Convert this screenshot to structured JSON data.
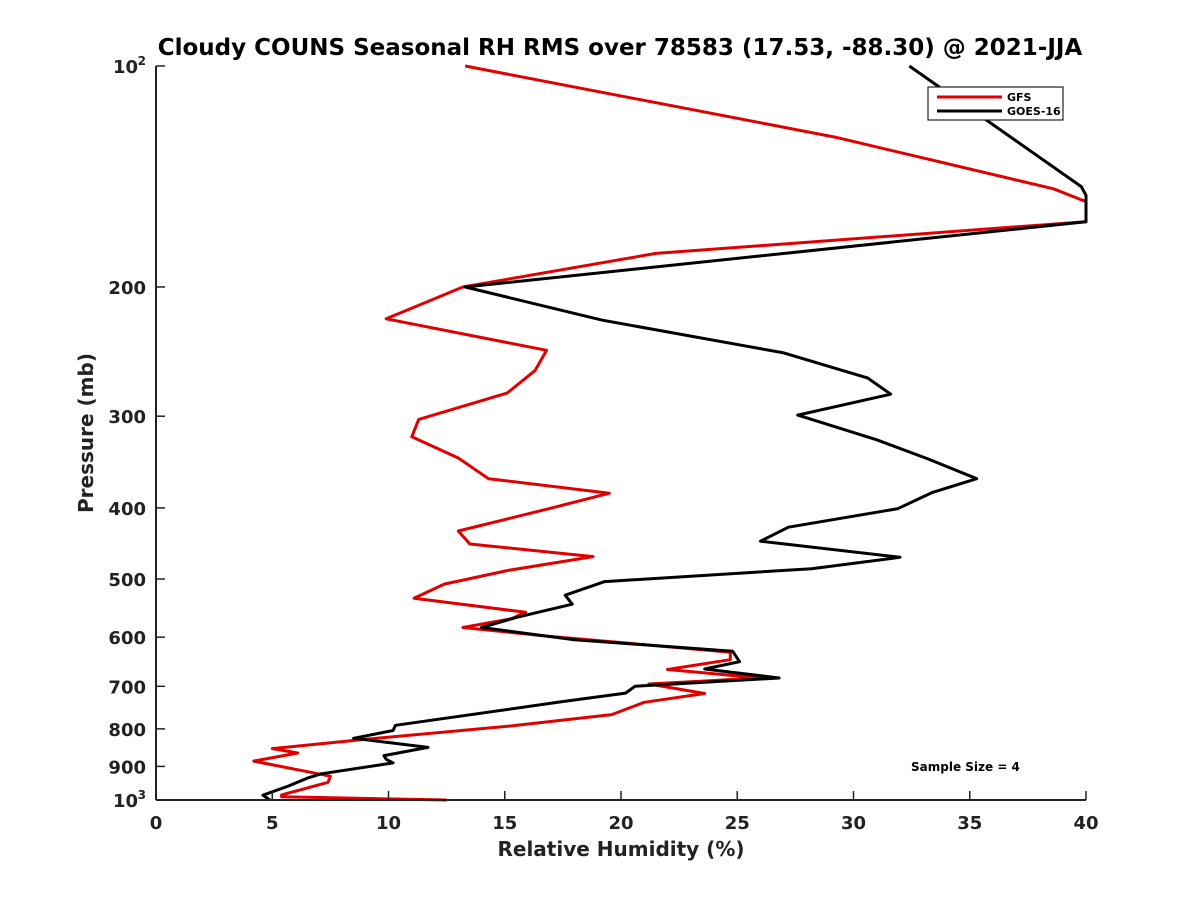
{
  "chart_data": {
    "type": "line",
    "title": "Cloudy COUNS Seasonal RH RMS over 78583 (17.53, -88.30) @ 2021-JJA",
    "xlabel": "Relative Humidity (%)",
    "ylabel": "Pressure (mb)",
    "xlim": [
      0,
      40
    ],
    "ylim": [
      100,
      1000
    ],
    "yscale": "log",
    "y_reversed": true,
    "grid": false,
    "legend_position": "top-right",
    "x_ticks": [
      0,
      5,
      10,
      15,
      20,
      25,
      30,
      35,
      40
    ],
    "x_tick_labels": [
      "0",
      "5",
      "10",
      "15",
      "20",
      "25",
      "30",
      "35",
      "40"
    ],
    "y_ticks": [
      100,
      200,
      300,
      400,
      500,
      600,
      700,
      800,
      900,
      1000
    ],
    "y_tick_labels": [
      {
        "base": "10",
        "exp": "2"
      },
      {
        "base": "200",
        "exp": ""
      },
      {
        "base": "300",
        "exp": ""
      },
      {
        "base": "400",
        "exp": ""
      },
      {
        "base": "500",
        "exp": ""
      },
      {
        "base": "600",
        "exp": ""
      },
      {
        "base": "700",
        "exp": ""
      },
      {
        "base": "800",
        "exp": ""
      },
      {
        "base": "900",
        "exp": ""
      },
      {
        "base": "10",
        "exp": "3"
      }
    ],
    "annotation": "Sample Size = 4",
    "series": [
      {
        "name": "GFS",
        "color": "#e00000",
        "points": [
          [
            13.3,
            100
          ],
          [
            29.2,
            125
          ],
          [
            38.6,
            147
          ],
          [
            40.0,
            153
          ],
          [
            40.0,
            163
          ],
          [
            21.5,
            180
          ],
          [
            13.2,
            200
          ],
          [
            9.9,
            221
          ],
          [
            16.8,
            244
          ],
          [
            16.3,
            260
          ],
          [
            15.1,
            279
          ],
          [
            11.3,
            303
          ],
          [
            11.0,
            320
          ],
          [
            13.0,
            342
          ],
          [
            14.3,
            365
          ],
          [
            19.5,
            382
          ],
          [
            16.9,
            401
          ],
          [
            13.0,
            430
          ],
          [
            13.5,
            448
          ],
          [
            18.8,
            466
          ],
          [
            15.1,
            487
          ],
          [
            12.4,
            508
          ],
          [
            11.1,
            531
          ],
          [
            15.9,
            555
          ],
          [
            15.3,
            566
          ],
          [
            13.2,
            582
          ],
          [
            16.8,
            598
          ],
          [
            24.7,
            629
          ],
          [
            24.7,
            644
          ],
          [
            22.0,
            664
          ],
          [
            26.0,
            682
          ],
          [
            21.2,
            695
          ],
          [
            23.6,
            716
          ],
          [
            21.0,
            736
          ],
          [
            19.6,
            765
          ],
          [
            15.2,
            793
          ],
          [
            8.6,
            829
          ],
          [
            5.0,
            851
          ],
          [
            6.1,
            863
          ],
          [
            4.2,
            885
          ],
          [
            7.5,
            928
          ],
          [
            7.4,
            946
          ],
          [
            5.4,
            984
          ],
          [
            5.4,
            990
          ],
          [
            12.5,
            1000
          ]
        ]
      },
      {
        "name": "GOES-16",
        "color": "#000000",
        "points": [
          [
            32.4,
            100
          ],
          [
            39.8,
            146
          ],
          [
            40.0,
            150
          ],
          [
            40.0,
            163
          ],
          [
            13.3,
            200
          ],
          [
            19.2,
            222
          ],
          [
            27.0,
            246
          ],
          [
            30.6,
            266
          ],
          [
            31.6,
            280
          ],
          [
            27.6,
            299
          ],
          [
            31.0,
            323
          ],
          [
            33.2,
            343
          ],
          [
            35.3,
            365
          ],
          [
            33.4,
            381
          ],
          [
            31.9,
            401
          ],
          [
            27.2,
            425
          ],
          [
            26.0,
            444
          ],
          [
            32.0,
            467
          ],
          [
            28.2,
            484
          ],
          [
            19.3,
            504
          ],
          [
            17.6,
            526
          ],
          [
            17.9,
            541
          ],
          [
            15.5,
            564
          ],
          [
            14.0,
            582
          ],
          [
            18.0,
            605
          ],
          [
            24.8,
            627
          ],
          [
            25.1,
            648
          ],
          [
            23.6,
            663
          ],
          [
            26.8,
            682
          ],
          [
            20.6,
            700
          ],
          [
            20.2,
            715
          ],
          [
            17.4,
            735
          ],
          [
            10.3,
            791
          ],
          [
            10.2,
            804
          ],
          [
            8.5,
            824
          ],
          [
            11.7,
            848
          ],
          [
            9.8,
            870
          ],
          [
            9.9,
            880
          ],
          [
            10.2,
            890
          ],
          [
            7.1,
            921
          ],
          [
            6.5,
            934
          ],
          [
            5.7,
            957
          ],
          [
            4.6,
            985
          ],
          [
            4.9,
            1000
          ]
        ]
      }
    ]
  }
}
